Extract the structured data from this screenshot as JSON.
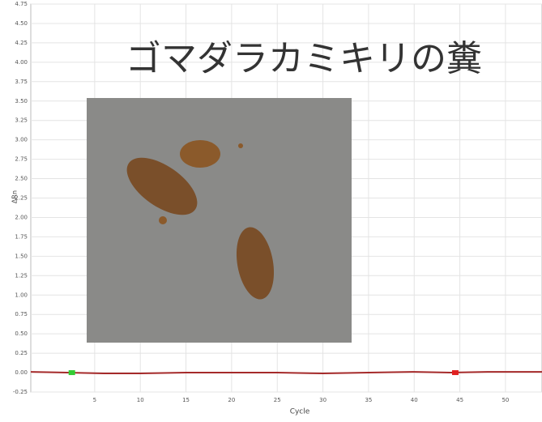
{
  "chart_data": {
    "type": "line",
    "annotation": "ゴマダラカミキリの糞",
    "xlabel": "Cycle",
    "ylabel": "ΔRn",
    "xlim": [
      -2,
      54
    ],
    "ylim": [
      -0.25,
      4.75
    ],
    "xticks": [
      5,
      10,
      15,
      20,
      25,
      30,
      35,
      40,
      45,
      50
    ],
    "yticks": [
      {
        "value": -0.25,
        "label": "-0.25"
      },
      {
        "value": 0,
        "label": "0.00"
      },
      {
        "value": 0.25,
        "label": "0.25"
      },
      {
        "value": 0.5,
        "label": "0.50"
      },
      {
        "value": 0.75,
        "label": "0.75"
      },
      {
        "value": 1,
        "label": "1.00"
      },
      {
        "value": 1.25,
        "label": "1.25"
      },
      {
        "value": 1.5,
        "label": "1.50"
      },
      {
        "value": 1.75,
        "label": "1.75"
      },
      {
        "value": 2,
        "label": "2.00"
      },
      {
        "value": 2.25,
        "label": "2.25"
      },
      {
        "value": 2.5,
        "label": "2.50"
      },
      {
        "value": 2.75,
        "label": "2.75"
      },
      {
        "value": 3,
        "label": "3.00"
      },
      {
        "value": 3.25,
        "label": "3.25"
      },
      {
        "value": 3.5,
        "label": "3.50"
      },
      {
        "value": 3.75,
        "label": "3.75"
      },
      {
        "value": 4,
        "label": "4.00"
      },
      {
        "value": 4.25,
        "label": "4.25"
      },
      {
        "value": 4.5,
        "label": "4.50"
      },
      {
        "value": 4.75,
        "label": "4.75"
      }
    ],
    "grid": true,
    "series": [
      {
        "color": "#a52a2a",
        "style": "line",
        "x": [
          -2,
          2,
          6,
          10,
          15,
          20,
          25,
          30,
          35,
          40,
          44,
          48,
          54
        ],
        "values": [
          0.01,
          0.0,
          -0.01,
          -0.01,
          0.0,
          0.0,
          0.0,
          -0.01,
          0.0,
          0.01,
          0.0,
          0.01,
          0.01
        ]
      },
      {
        "color": "#33cc33",
        "style": "point",
        "x": [
          2.5
        ],
        "values": [
          0.0
        ]
      },
      {
        "color": "#e02020",
        "style": "point",
        "x": [
          44.5
        ],
        "values": [
          0.0
        ]
      }
    ]
  }
}
